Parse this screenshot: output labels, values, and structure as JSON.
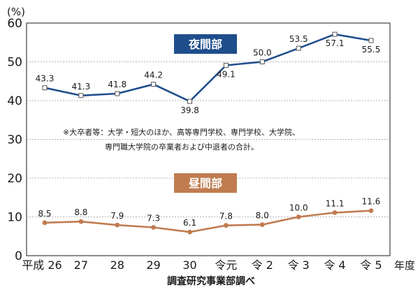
{
  "chart_data": {
    "type": "line",
    "categories": [
      "平成 26",
      "27",
      "28",
      "29",
      "30",
      "令元",
      "令 2",
      "令 3",
      "令 4",
      "令 5"
    ],
    "ylim": [
      0,
      60
    ],
    "yticks": [
      "0",
      "10",
      "20",
      "30",
      "40",
      "50",
      "60"
    ],
    "grid": "horizontal dashed",
    "y_unit_label": "(%)",
    "x_unit_label": "年度",
    "source": "調査研究事業部調べ",
    "note_lines": [
      "※大卒者等：大学・短大のほか、高等専門学校、専門学校、大学院、",
      "専門職大学院の卒業者および中退者の合計。"
    ],
    "series": [
      {
        "name": "夜間部",
        "color": "#1f4e8c",
        "badge_color": "#1f4e8c",
        "values": [
          43.3,
          41.3,
          41.8,
          44.2,
          39.8,
          49.1,
          50.0,
          53.5,
          57.1,
          55.5
        ],
        "labels": [
          "43.3",
          "41.3",
          "41.8",
          "44.2",
          "39.8",
          "49.1",
          "50.0",
          "53.5",
          "57.1",
          "55.5"
        ]
      },
      {
        "name": "昼間部",
        "color": "#c07c50",
        "badge_color": "#c07c50",
        "values": [
          8.5,
          8.8,
          7.9,
          7.3,
          6.1,
          7.8,
          8.0,
          10.0,
          11.1,
          11.6
        ],
        "labels": [
          "8.5",
          "8.8",
          "7.9",
          "7.3",
          "6.1",
          "7.8",
          "8.0",
          "10.0",
          "11.1",
          "11.6"
        ]
      }
    ]
  }
}
